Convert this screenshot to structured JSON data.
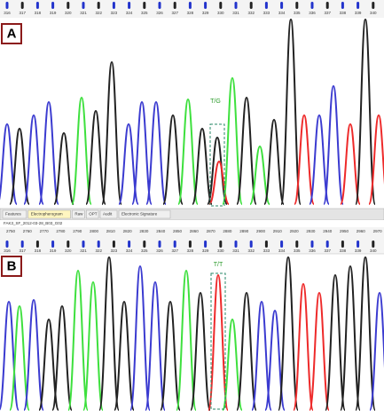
{
  "panels": [
    {
      "label": "A",
      "annotation": "T/G",
      "bases": [
        "316",
        "317",
        "318",
        "319",
        "320",
        "321",
        "322",
        "323",
        "324",
        "325",
        "326",
        "327",
        "328",
        "329",
        "330",
        "331",
        "332",
        "333",
        "334",
        "335",
        "336",
        "337",
        "338",
        "339",
        "340"
      ]
    },
    {
      "label": "B",
      "annotation": "T/T",
      "bases": [
        "316",
        "317",
        "318",
        "319",
        "320",
        "321",
        "322",
        "323",
        "324",
        "325",
        "326",
        "327",
        "328",
        "329",
        "330",
        "331",
        "332",
        "333",
        "334",
        "335",
        "336",
        "337",
        "338",
        "339",
        "340"
      ]
    }
  ],
  "tabs": [
    "Features",
    "Electropherogram",
    "Raw",
    "OPT",
    "Audit",
    "Electronic Signature"
  ],
  "file_name": "FAK3_SF_2012-03-28_B03_G02",
  "ruler_b": [
    2750,
    2760,
    2770,
    2780,
    2790,
    2800,
    2810,
    2820,
    2830,
    2840,
    2850,
    2860,
    2870,
    2880,
    2890,
    2900,
    2910,
    2920,
    2930,
    2940,
    2950,
    2960,
    2970
  ]
}
